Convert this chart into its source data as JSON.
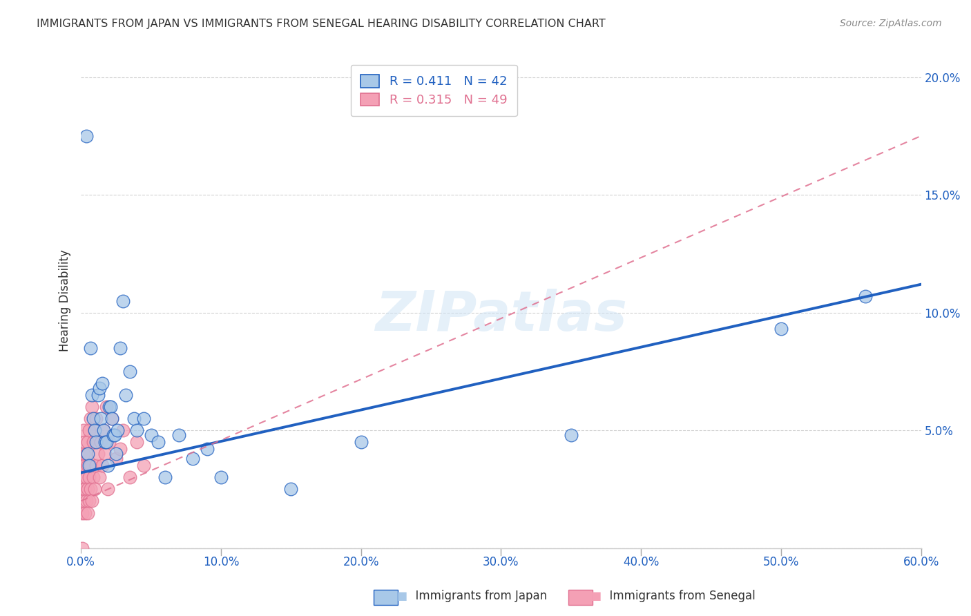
{
  "title": "IMMIGRANTS FROM JAPAN VS IMMIGRANTS FROM SENEGAL HEARING DISABILITY CORRELATION CHART",
  "source": "Source: ZipAtlas.com",
  "ylabel": "Hearing Disability",
  "watermark": "ZIPatlas",
  "japan_R": 0.411,
  "japan_N": 42,
  "senegal_R": 0.315,
  "senegal_N": 49,
  "japan_color": "#a8c8e8",
  "senegal_color": "#f4a0b5",
  "japan_line_color": "#2060c0",
  "senegal_line_color": "#e07090",
  "xlim": [
    0.0,
    0.6
  ],
  "ylim": [
    0.0,
    0.21
  ],
  "xticks": [
    0.0,
    0.1,
    0.2,
    0.3,
    0.4,
    0.5,
    0.6
  ],
  "yticks": [
    0.0,
    0.05,
    0.1,
    0.15,
    0.2
  ],
  "japan_x": [
    0.004,
    0.005,
    0.006,
    0.007,
    0.008,
    0.009,
    0.01,
    0.011,
    0.012,
    0.013,
    0.014,
    0.015,
    0.016,
    0.017,
    0.018,
    0.019,
    0.02,
    0.021,
    0.022,
    0.023,
    0.024,
    0.025,
    0.026,
    0.028,
    0.03,
    0.032,
    0.035,
    0.038,
    0.04,
    0.045,
    0.05,
    0.055,
    0.06,
    0.07,
    0.08,
    0.09,
    0.1,
    0.15,
    0.2,
    0.35,
    0.5,
    0.56
  ],
  "japan_y": [
    0.175,
    0.04,
    0.035,
    0.085,
    0.065,
    0.055,
    0.05,
    0.045,
    0.065,
    0.068,
    0.055,
    0.07,
    0.05,
    0.045,
    0.045,
    0.035,
    0.06,
    0.06,
    0.055,
    0.048,
    0.048,
    0.04,
    0.05,
    0.085,
    0.105,
    0.065,
    0.075,
    0.055,
    0.05,
    0.055,
    0.048,
    0.045,
    0.03,
    0.048,
    0.038,
    0.042,
    0.03,
    0.025,
    0.045,
    0.048,
    0.093,
    0.107
  ],
  "senegal_x": [
    0.001,
    0.001,
    0.001,
    0.002,
    0.002,
    0.002,
    0.002,
    0.003,
    0.003,
    0.003,
    0.003,
    0.004,
    0.004,
    0.004,
    0.005,
    0.005,
    0.005,
    0.005,
    0.006,
    0.006,
    0.006,
    0.007,
    0.007,
    0.007,
    0.008,
    0.008,
    0.009,
    0.009,
    0.01,
    0.01,
    0.011,
    0.011,
    0.012,
    0.013,
    0.014,
    0.015,
    0.016,
    0.017,
    0.018,
    0.019,
    0.02,
    0.022,
    0.025,
    0.028,
    0.03,
    0.035,
    0.04,
    0.045,
    0.001
  ],
  "senegal_y": [
    0.015,
    0.025,
    0.035,
    0.02,
    0.03,
    0.04,
    0.05,
    0.015,
    0.025,
    0.035,
    0.045,
    0.02,
    0.03,
    0.04,
    0.015,
    0.025,
    0.035,
    0.045,
    0.02,
    0.03,
    0.05,
    0.025,
    0.035,
    0.055,
    0.02,
    0.06,
    0.03,
    0.045,
    0.025,
    0.05,
    0.035,
    0.055,
    0.04,
    0.03,
    0.045,
    0.035,
    0.05,
    0.04,
    0.06,
    0.025,
    0.045,
    0.055,
    0.038,
    0.042,
    0.05,
    0.03,
    0.045,
    0.035,
    0.0
  ],
  "japan_line_x0": 0.0,
  "japan_line_y0": 0.032,
  "japan_line_x1": 0.6,
  "japan_line_y1": 0.112,
  "senegal_line_x0": 0.0,
  "senegal_line_y0": 0.02,
  "senegal_line_x1": 0.6,
  "senegal_line_y1": 0.175
}
